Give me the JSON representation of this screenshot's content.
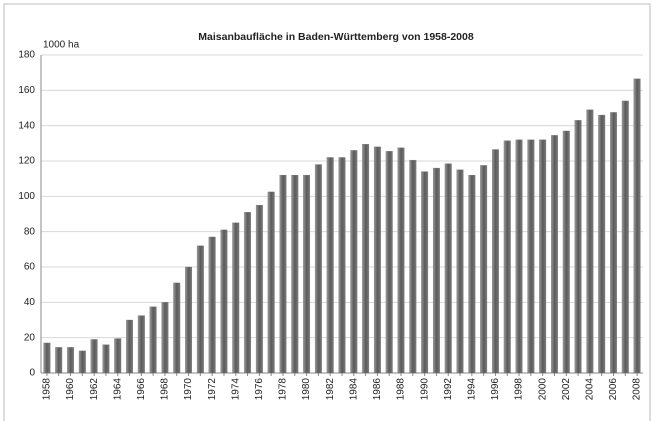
{
  "chart_data": {
    "type": "bar",
    "title": "Maisanbaufläche in Baden-Württemberg  von 1958-2008",
    "y_label": "1000 ha",
    "categories": [
      "1958",
      null,
      "1960",
      null,
      "1962",
      null,
      "1964",
      null,
      "1966",
      null,
      "1968",
      null,
      "1970",
      null,
      "1972",
      null,
      "1974",
      null,
      "1976",
      null,
      "1978",
      null,
      "1980",
      null,
      "1982",
      null,
      "1984",
      null,
      "1986",
      null,
      "1988",
      null,
      "1990",
      null,
      "1992",
      null,
      "1994",
      null,
      "1996",
      null,
      "1998",
      null,
      "2000",
      null,
      "2002",
      null,
      "2004",
      null,
      "2006",
      null,
      "2008"
    ],
    "values": [
      17,
      14.5,
      14.5,
      12.5,
      19,
      16,
      19.5,
      30,
      32.5,
      37.5,
      40,
      51,
      60,
      72,
      77,
      81,
      85,
      91,
      95,
      102.5,
      112,
      112,
      112,
      118,
      122,
      122,
      126,
      129.5,
      128,
      125.5,
      127.5,
      120.5,
      114,
      116,
      118.5,
      115,
      112,
      117.5,
      126.5,
      131.5,
      132,
      132,
      132,
      134.5,
      137,
      143,
      149,
      146,
      147.5,
      154,
      166.5
    ],
    "color": "#6e6e6e",
    "ylim": [
      0,
      180
    ],
    "yticks": [
      0,
      20,
      40,
      60,
      80,
      100,
      120,
      140,
      160,
      180
    ],
    "grid": true
  }
}
